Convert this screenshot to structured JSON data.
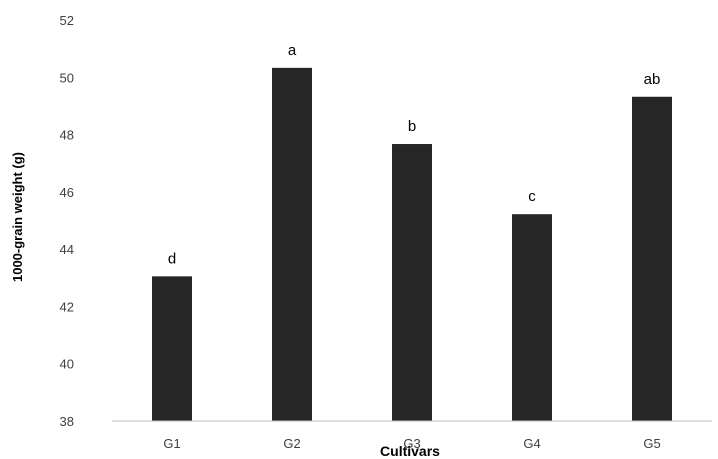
{
  "chart_data": {
    "type": "bar",
    "title": "",
    "xlabel": "Cultivars",
    "ylabel": "1000-grain weight (g)",
    "categories": [
      "G1",
      "G2",
      "G3",
      "G4",
      "G5"
    ],
    "values": [
      43.05,
      50.33,
      47.67,
      45.22,
      49.32
    ],
    "significance_labels": [
      "d",
      "a",
      "b",
      "c",
      "ab"
    ],
    "ylim": [
      38,
      52
    ],
    "yticks": [
      "38",
      "40",
      "42",
      "44",
      "46",
      "48",
      "50",
      "52"
    ],
    "grid": false,
    "legend": "none",
    "bar_color": "#262626",
    "axis_color": "#bfbfbf"
  }
}
